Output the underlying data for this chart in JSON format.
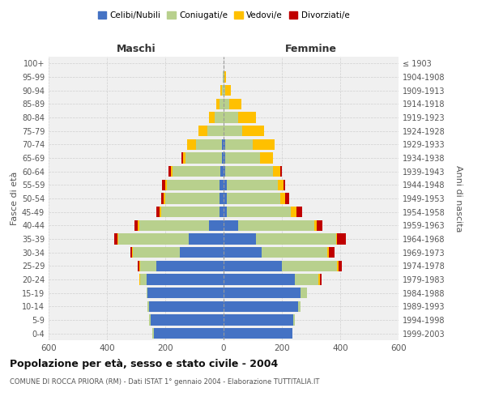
{
  "age_groups": [
    "0-4",
    "5-9",
    "10-14",
    "15-19",
    "20-24",
    "25-29",
    "30-34",
    "35-39",
    "40-44",
    "45-49",
    "50-54",
    "55-59",
    "60-64",
    "65-69",
    "70-74",
    "75-79",
    "80-84",
    "85-89",
    "90-94",
    "95-99",
    "100+"
  ],
  "birth_years": [
    "1999-2003",
    "1994-1998",
    "1989-1993",
    "1984-1988",
    "1979-1983",
    "1974-1978",
    "1969-1973",
    "1964-1968",
    "1959-1963",
    "1954-1958",
    "1949-1953",
    "1944-1948",
    "1939-1943",
    "1934-1938",
    "1929-1933",
    "1924-1928",
    "1919-1923",
    "1914-1918",
    "1909-1913",
    "1904-1908",
    "≤ 1903"
  ],
  "male": {
    "celibe": [
      240,
      250,
      255,
      260,
      265,
      230,
      150,
      120,
      50,
      15,
      15,
      15,
      10,
      5,
      5,
      0,
      0,
      0,
      0,
      0,
      0
    ],
    "coniugato": [
      5,
      5,
      5,
      5,
      20,
      55,
      160,
      240,
      240,
      200,
      185,
      180,
      165,
      125,
      90,
      55,
      30,
      15,
      5,
      2,
      0
    ],
    "vedovo": [
      0,
      0,
      0,
      0,
      5,
      5,
      5,
      5,
      5,
      5,
      5,
      5,
      5,
      10,
      30,
      30,
      20,
      10,
      5,
      2,
      0
    ],
    "divorziato": [
      0,
      0,
      0,
      0,
      0,
      5,
      5,
      10,
      10,
      10,
      10,
      10,
      10,
      5,
      0,
      0,
      0,
      0,
      0,
      0,
      0
    ]
  },
  "female": {
    "nubile": [
      235,
      240,
      255,
      265,
      245,
      200,
      130,
      110,
      50,
      10,
      10,
      10,
      5,
      5,
      5,
      0,
      0,
      0,
      0,
      0,
      0
    ],
    "coniugata": [
      0,
      5,
      10,
      20,
      80,
      190,
      225,
      275,
      260,
      220,
      185,
      175,
      165,
      120,
      95,
      65,
      50,
      20,
      5,
      2,
      0
    ],
    "vedova": [
      0,
      0,
      0,
      0,
      5,
      5,
      5,
      5,
      10,
      20,
      15,
      20,
      25,
      45,
      75,
      75,
      60,
      40,
      20,
      5,
      0
    ],
    "divorziata": [
      0,
      0,
      0,
      0,
      5,
      10,
      20,
      30,
      20,
      20,
      15,
      5,
      5,
      0,
      0,
      0,
      0,
      0,
      0,
      0,
      0
    ]
  },
  "colors": {
    "celibe": "#4472c4",
    "coniugato": "#b8d08d",
    "vedovo": "#ffc000",
    "divorziato": "#c00000"
  },
  "title": "Popolazione per età, sesso e stato civile - 2004",
  "subtitle": "COMUNE DI ROCCA PRIORA (RM) - Dati ISTAT 1° gennaio 2004 - Elaborazione TUTTITALIA.IT",
  "xlabel_left": "Maschi",
  "xlabel_right": "Femmine",
  "ylabel_left": "Fasce di età",
  "ylabel_right": "Anni di nascita",
  "legend_labels": [
    "Celibi/Nubili",
    "Coniugati/e",
    "Vedovi/e",
    "Divorziati/e"
  ],
  "xlim": 600,
  "background_color": "#ffffff",
  "plot_bg": "#f0f0f0",
  "grid_color": "#cccccc"
}
